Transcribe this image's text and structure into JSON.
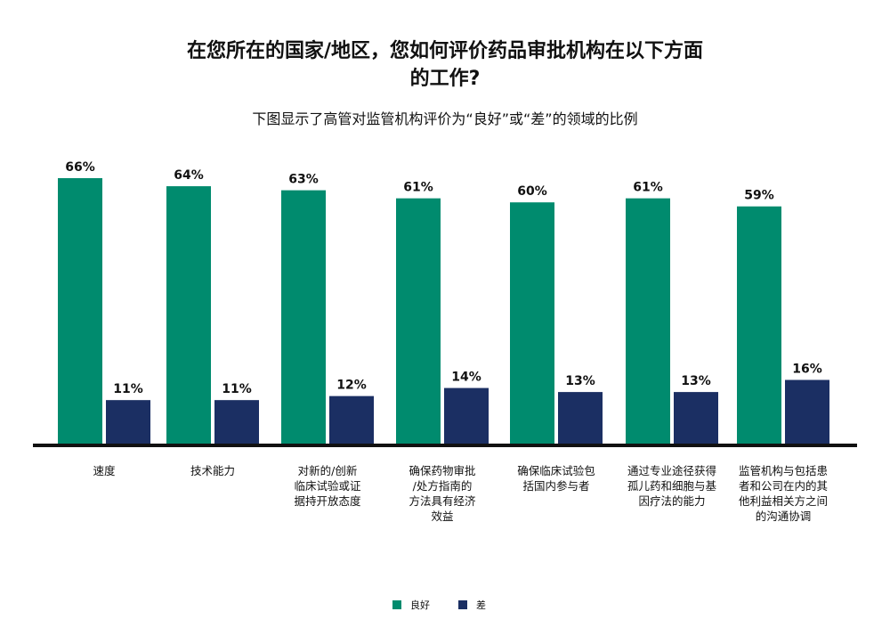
{
  "chart_data": {
    "type": "bar",
    "title": [
      "在您所在的国家/地区，您如何评价药品审批机构在以下方面",
      "的工作?"
    ],
    "subtitle": "下图显示了高管对监管机构评价为“良好”或“差”的领域的比例",
    "categories": [
      "速度",
      "技术能力",
      "对新的/创新\n临床试验或证\n据持开放态度",
      "确保药物审批\n/处方指南的\n方法具有经济\n效益",
      "确保临床试验包\n括国内参与者",
      "通过专业途径获得\n孤儿药和细胞与基\n因疗法的能力",
      "监管机构与包括患\n者和公司在内的其\n他利益相关方之间\n的沟通协调"
    ],
    "series": [
      {
        "name": "良好",
        "color": "#008B6E",
        "values": [
          66,
          64,
          63,
          61,
          60,
          61,
          59
        ],
        "labels": [
          "66%",
          "64%",
          "63%",
          "61%",
          "60%",
          "61%",
          "59%"
        ]
      },
      {
        "name": "差",
        "color": "#1B2F63",
        "values": [
          11,
          11,
          12,
          14,
          13,
          13,
          16
        ],
        "labels": [
          "11%",
          "11%",
          "12%",
          "14%",
          "13%",
          "13%",
          "16%"
        ]
      }
    ],
    "ylim": [
      0,
      70
    ],
    "unit": "%",
    "grid": false,
    "legend_position": "bottom-center"
  }
}
